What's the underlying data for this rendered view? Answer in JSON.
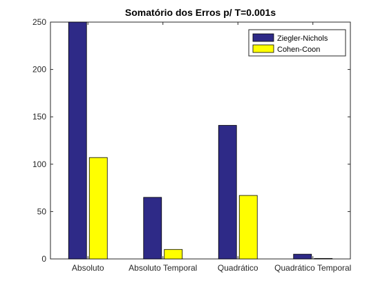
{
  "chart_data": {
    "type": "bar",
    "title": "Somatório dos Erros p/ T=0.001s",
    "xlabel": "",
    "ylabel": "",
    "categories": [
      "Absoluto",
      "Absoluto Temporal",
      "Quadrático",
      "Quadrático Temporal"
    ],
    "series": [
      {
        "name": "Ziegler-Nichols",
        "values": [
          250,
          65,
          141,
          5
        ],
        "color": "#2e2a87"
      },
      {
        "name": "Cohen-Coon",
        "values": [
          107,
          10,
          67,
          0.5
        ],
        "color": "#ffff00"
      }
    ],
    "ylim": [
      0,
      250
    ],
    "yticks": [
      "0",
      "50",
      "100",
      "150",
      "200",
      "250"
    ],
    "grid": false,
    "legend_position": "top-right"
  }
}
